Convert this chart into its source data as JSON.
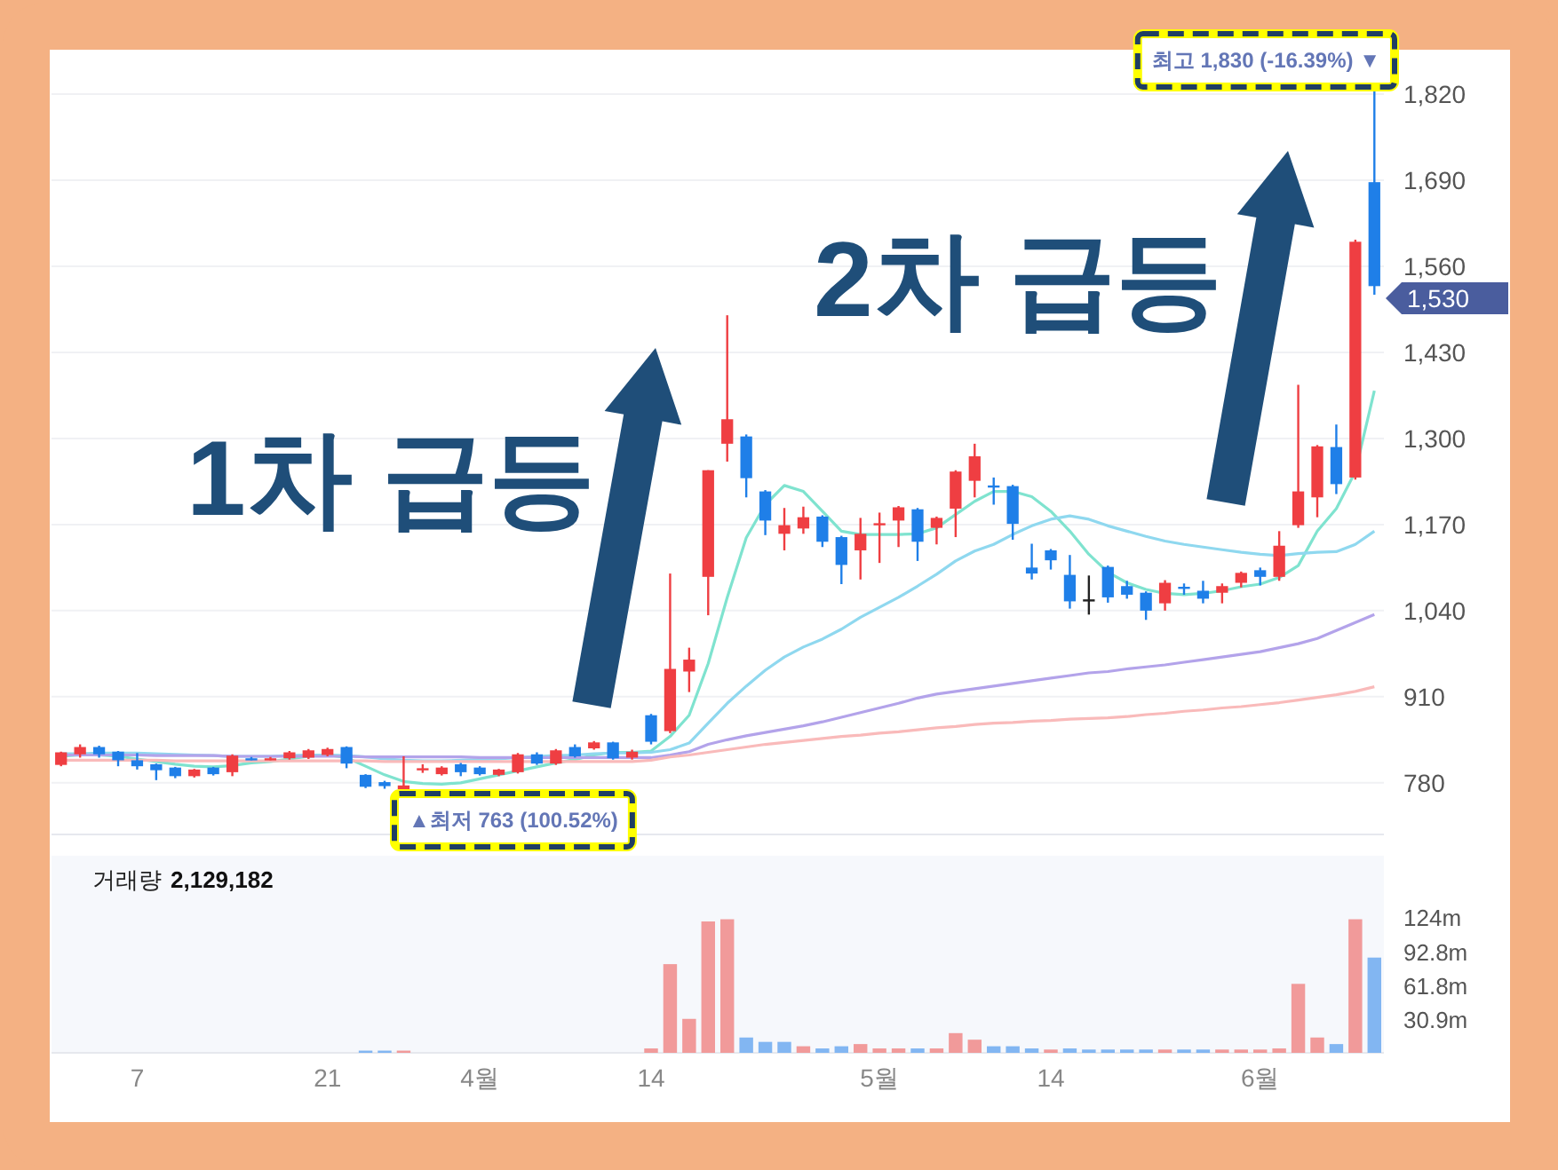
{
  "chart_data": [
    {
      "type": "candlestick",
      "categories": [
        null,
        null,
        null,
        null,
        null,
        null,
        null,
        null,
        null,
        null,
        null,
        null,
        null,
        null,
        null,
        null,
        null,
        null,
        null,
        null,
        null,
        null,
        null,
        null,
        null,
        null,
        null,
        null,
        null,
        null,
        null,
        null,
        null,
        null,
        null,
        null,
        null,
        null,
        null,
        null,
        null,
        null,
        null,
        null,
        null,
        null,
        null,
        null,
        null,
        null,
        null,
        null,
        null,
        null,
        null,
        null,
        null,
        null,
        null,
        null,
        null,
        null,
        null,
        null,
        null,
        null,
        null,
        null,
        null,
        null
      ],
      "ohlc": [
        [
          807,
          827,
          805,
          826
        ],
        [
          823,
          838,
          818,
          834
        ],
        [
          834,
          836,
          818,
          823
        ],
        [
          827,
          828,
          805,
          814
        ],
        [
          814,
          825,
          800,
          805
        ],
        [
          808,
          809,
          784,
          799
        ],
        [
          803,
          804,
          787,
          790
        ],
        [
          790,
          801,
          788,
          800
        ],
        [
          803,
          804,
          791,
          793
        ],
        [
          796,
          823,
          790,
          821
        ],
        [
          817,
          819,
          814,
          816
        ],
        [
          816,
          819,
          814,
          817
        ],
        [
          817,
          828,
          815,
          826
        ],
        [
          818,
          831,
          816,
          829
        ],
        [
          822,
          833,
          820,
          831
        ],
        [
          834,
          835,
          802,
          809
        ],
        [
          792,
          793,
          772,
          774
        ],
        [
          781,
          783,
          771,
          775
        ],
        [
          770,
          820,
          763,
          776
        ],
        [
          800,
          808,
          795,
          802
        ],
        [
          793,
          805,
          791,
          803
        ],
        [
          808,
          810,
          790,
          796
        ],
        [
          803,
          805,
          791,
          793
        ],
        [
          792,
          801,
          790,
          800
        ],
        [
          796,
          825,
          794,
          823
        ],
        [
          823,
          826,
          807,
          809
        ],
        [
          809,
          831,
          807,
          829
        ],
        [
          834,
          838,
          818,
          820
        ],
        [
          832,
          843,
          830,
          841
        ],
        [
          841,
          842,
          815,
          817
        ],
        [
          818,
          830,
          815,
          827
        ],
        [
          882,
          884,
          838,
          842
        ],
        [
          858,
          1096,
          855,
          952
        ],
        [
          948,
          984,
          917,
          966
        ],
        [
          1091,
          1252,
          1033,
          1252
        ],
        [
          1292,
          1486,
          1265,
          1329
        ],
        [
          1303,
          1306,
          1211,
          1240
        ],
        [
          1220,
          1222,
          1154,
          1176
        ],
        [
          1156,
          1195,
          1131,
          1169
        ],
        [
          1164,
          1197,
          1156,
          1181
        ],
        [
          1182,
          1184,
          1136,
          1144
        ],
        [
          1151,
          1153,
          1080,
          1109
        ],
        [
          1131,
          1180,
          1087,
          1156
        ],
        [
          1169,
          1188,
          1112,
          1172
        ],
        [
          1176,
          1198,
          1136,
          1196
        ],
        [
          1193,
          1195,
          1115,
          1144
        ],
        [
          1165,
          1182,
          1140,
          1180
        ],
        [
          1194,
          1252,
          1151,
          1250
        ],
        [
          1236,
          1292,
          1211,
          1273
        ],
        [
          1229,
          1241,
          1200,
          1227
        ],
        [
          1228,
          1230,
          1147,
          1171
        ],
        [
          1105,
          1141,
          1087,
          1096
        ],
        [
          1131,
          1133,
          1102,
          1116
        ],
        [
          1094,
          1124,
          1043,
          1054
        ],
        [
          1057,
          1093,
          1034,
          1057
        ],
        [
          1106,
          1108,
          1052,
          1060
        ],
        [
          1077,
          1085,
          1058,
          1064
        ],
        [
          1067,
          1069,
          1026,
          1040
        ],
        [
          1051,
          1086,
          1040,
          1082
        ],
        [
          1076,
          1081,
          1064,
          1074
        ],
        [
          1070,
          1085,
          1051,
          1058
        ],
        [
          1067,
          1081,
          1051,
          1077
        ],
        [
          1082,
          1099,
          1075,
          1097
        ],
        [
          1101,
          1105,
          1078,
          1091
        ],
        [
          1091,
          1160,
          1085,
          1138
        ],
        [
          1169,
          1381,
          1165,
          1220
        ],
        [
          1211,
          1290,
          1181,
          1288
        ],
        [
          1287,
          1321,
          1216,
          1231
        ],
        [
          1241,
          1600,
          1238,
          1597
        ],
        [
          1687,
          1830,
          1517,
          1530
        ]
      ],
      "colors": [
        "#ef3e42",
        "#ef3e42",
        "#1f7fe8",
        "#1f7fe8",
        "#1f7fe8",
        "#1f7fe8",
        "#1f7fe8",
        "#ef3e42",
        "#1f7fe8",
        "#ef3e42",
        "#1f7fe8",
        "#ef3e42",
        "#ef3e42",
        "#ef3e42",
        "#ef3e42",
        "#1f7fe8",
        "#1f7fe8",
        "#1f7fe8",
        "#ef3e42",
        "#ef3e42",
        "#ef3e42",
        "#1f7fe8",
        "#1f7fe8",
        "#ef3e42",
        "#ef3e42",
        "#1f7fe8",
        "#ef3e42",
        "#1f7fe8",
        "#ef3e42",
        "#1f7fe8",
        "#ef3e42",
        "#1f7fe8",
        "#ef3e42",
        "#ef3e42",
        "#ef3e42",
        "#ef3e42",
        "#1f7fe8",
        "#1f7fe8",
        "#ef3e42",
        "#ef3e42",
        "#1f7fe8",
        "#1f7fe8",
        "#ef3e42",
        "#ef3e42",
        "#ef3e42",
        "#1f7fe8",
        "#ef3e42",
        "#ef3e42",
        "#ef3e42",
        "#1f7fe8",
        "#1f7fe8",
        "#1f7fe8",
        "#1f7fe8",
        "#1f7fe8",
        "#222222",
        "#1f7fe8",
        "#1f7fe8",
        "#1f7fe8",
        "#ef3e42",
        "#1f7fe8",
        "#1f7fe8",
        "#ef3e42",
        "#ef3e42",
        "#1f7fe8",
        "#ef3e42",
        "#ef3e42",
        "#ef3e42",
        "#1f7fe8",
        "#ef3e42",
        "#1f7fe8"
      ],
      "series": [
        {
          "type": "line",
          "color": "#7fe3cf",
          "values": [
            820,
            822,
            822,
            820,
            816,
            812,
            808,
            805,
            804,
            806,
            810,
            812,
            816,
            820,
            822,
            818,
            805,
            792,
            782,
            779,
            778,
            780,
            786,
            792,
            798,
            804,
            810,
            815,
            822,
            826,
            826,
            828,
            850,
            882,
            960,
            1060,
            1150,
            1200,
            1229,
            1220,
            1190,
            1160,
            1155,
            1155,
            1155,
            1156,
            1165,
            1185,
            1205,
            1220,
            1220,
            1212,
            1190,
            1160,
            1125,
            1098,
            1082,
            1072,
            1066,
            1064,
            1066,
            1070,
            1076,
            1080,
            1090,
            1108,
            1160,
            1194,
            1250,
            1372
          ]
        },
        {
          "type": "line",
          "color": "#8fd8ef",
          "values": [
            824,
            824,
            825,
            825,
            825,
            824,
            823,
            822,
            821,
            820,
            820,
            820,
            821,
            822,
            822,
            821,
            819,
            816,
            814,
            813,
            813,
            814,
            815,
            816,
            818,
            820,
            821,
            822,
            824,
            825,
            825,
            826,
            830,
            840,
            870,
            900,
            926,
            950,
            970,
            985,
            997,
            1012,
            1030,
            1045,
            1060,
            1077,
            1095,
            1115,
            1130,
            1140,
            1155,
            1168,
            1178,
            1183,
            1178,
            1168,
            1160,
            1152,
            1145,
            1140,
            1136,
            1132,
            1128,
            1125,
            1123,
            1126,
            1128,
            1129,
            1140,
            1160
          ]
        },
        {
          "type": "line",
          "color": "#b3a3ea",
          "values": [
            822,
            822,
            822,
            822,
            822,
            821,
            821,
            821,
            821,
            820,
            820,
            820,
            820,
            820,
            820,
            820,
            819,
            819,
            819,
            819,
            819,
            819,
            818,
            818,
            818,
            818,
            818,
            818,
            818,
            818,
            818,
            818,
            822,
            827,
            838,
            845,
            851,
            856,
            861,
            866,
            872,
            879,
            886,
            893,
            900,
            908,
            914,
            918,
            922,
            926,
            930,
            934,
            938,
            942,
            946,
            948,
            952,
            955,
            958,
            962,
            966,
            970,
            974,
            978,
            984,
            990,
            998,
            1010,
            1022,
            1034
          ]
        },
        {
          "type": "line",
          "color": "#f9baba",
          "values": [
            814,
            814,
            814,
            814,
            814,
            814,
            813,
            813,
            813,
            813,
            813,
            813,
            813,
            813,
            813,
            813,
            813,
            812,
            812,
            812,
            812,
            812,
            812,
            812,
            812,
            812,
            812,
            812,
            812,
            812,
            812,
            814,
            819,
            822,
            826,
            830,
            834,
            838,
            841,
            844,
            847,
            850,
            852,
            855,
            857,
            860,
            863,
            865,
            868,
            870,
            871,
            873,
            874,
            876,
            877,
            878,
            880,
            883,
            885,
            888,
            890,
            893,
            895,
            898,
            901,
            905,
            909,
            913,
            918,
            925
          ]
        }
      ],
      "ylim": [
        702,
        1887
      ],
      "yticks": [
        {
          "value": 780,
          "label": "780"
        },
        {
          "value": 910,
          "label": "910"
        },
        {
          "value": 1040,
          "label": "1,040"
        },
        {
          "value": 1170,
          "label": "1,170"
        },
        {
          "value": 1300,
          "label": "1,300"
        },
        {
          "value": 1430,
          "label": "1,430"
        },
        {
          "value": 1560,
          "label": "1,560"
        },
        {
          "value": 1690,
          "label": "1,690"
        },
        {
          "value": 1820,
          "label": "1,820"
        }
      ],
      "grid": "y",
      "tick_labels": "y",
      "annotations": [
        "1차 급등",
        "2차 급등",
        "▲최저 763 (100.52%)",
        "최고 1,830 (-16.39%) ▼",
        "1,530"
      ]
    },
    {
      "type": "bar",
      "title": "거래량",
      "subtitle": "2,129,182",
      "categories": [
        null,
        null,
        null,
        null,
        "7",
        null,
        null,
        null,
        null,
        null,
        null,
        null,
        null,
        null,
        "21",
        null,
        null,
        null,
        null,
        null,
        null,
        null,
        "4월",
        null,
        null,
        null,
        null,
        null,
        null,
        null,
        null,
        "14",
        null,
        null,
        null,
        null,
        null,
        null,
        null,
        null,
        null,
        null,
        null,
        "5월",
        null,
        null,
        null,
        null,
        null,
        null,
        null,
        null,
        "14",
        null,
        null,
        null,
        null,
        null,
        null,
        null,
        null,
        null,
        null,
        "6월",
        null,
        null,
        null,
        null,
        null,
        null
      ],
      "values": [
        0,
        0,
        0,
        0,
        0,
        0,
        0,
        0,
        0,
        0,
        0,
        0,
        0,
        0,
        0,
        0,
        2,
        2,
        2,
        0,
        0,
        0,
        0,
        0,
        0,
        0,
        0,
        0,
        0,
        0,
        0,
        4,
        81,
        31,
        120,
        122,
        14,
        10,
        10,
        6,
        4,
        6,
        8,
        4,
        4,
        4,
        4,
        18,
        12,
        6,
        6,
        4,
        3,
        4,
        3,
        3,
        3,
        3,
        3,
        3,
        3,
        3,
        3,
        3,
        4,
        63,
        14,
        8,
        122,
        87
      ],
      "colors": [
        "#f19a9a",
        "#f19a9a",
        "#82b6f2",
        "#82b6f2",
        "#82b6f2",
        "#82b6f2",
        "#82b6f2",
        "#f19a9a",
        "#82b6f2",
        "#f19a9a",
        "#82b6f2",
        "#f19a9a",
        "#f19a9a",
        "#f19a9a",
        "#f19a9a",
        "#82b6f2",
        "#82b6f2",
        "#82b6f2",
        "#f19a9a",
        "#f19a9a",
        "#f19a9a",
        "#82b6f2",
        "#82b6f2",
        "#f19a9a",
        "#f19a9a",
        "#82b6f2",
        "#f19a9a",
        "#82b6f2",
        "#f19a9a",
        "#82b6f2",
        "#f19a9a",
        "#f19a9a",
        "#f19a9a",
        "#f19a9a",
        "#f19a9a",
        "#f19a9a",
        "#82b6f2",
        "#82b6f2",
        "#82b6f2",
        "#f19a9a",
        "#82b6f2",
        "#82b6f2",
        "#f19a9a",
        "#f19a9a",
        "#f19a9a",
        "#82b6f2",
        "#f19a9a",
        "#f19a9a",
        "#f19a9a",
        "#82b6f2",
        "#82b6f2",
        "#82b6f2",
        "#f19a9a",
        "#82b6f2",
        "#82b6f2",
        "#82b6f2",
        "#82b6f2",
        "#82b6f2",
        "#f19a9a",
        "#82b6f2",
        "#82b6f2",
        "#f19a9a",
        "#f19a9a",
        "#f19a9a",
        "#f19a9a",
        "#f19a9a",
        "#f19a9a",
        "#82b6f2",
        "#f19a9a",
        "#82b6f2"
      ],
      "ylim": [
        0,
        180
      ],
      "yticks": [
        {
          "value": 30.9,
          "label": "30.9m"
        },
        {
          "value": 61.8,
          "label": "61.8m"
        },
        {
          "value": 92.8,
          "label": "92.8m"
        },
        {
          "value": 124,
          "label": "124m"
        }
      ]
    }
  ]
}
